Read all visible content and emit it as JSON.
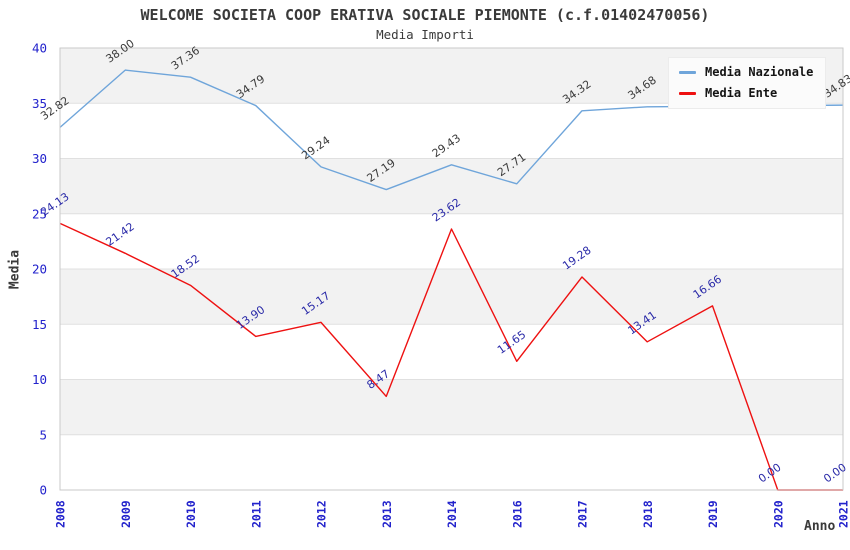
{
  "header": {
    "title": "WELCOME SOCIETA COOP ERATIVA SOCIALE PIEMONTE (c.f.01402470056)",
    "subtitle": "Media Importi"
  },
  "legend": {
    "items": [
      {
        "label": "Media Nazionale",
        "color": "#6fa5da"
      },
      {
        "label": "Media Ente",
        "color": "#ee1111"
      }
    ]
  },
  "axes": {
    "y_title": "Media",
    "x_title": "Anno"
  },
  "chart_data": {
    "type": "line",
    "title": "WELCOME SOCIETA COOP ERATIVA SOCIALE PIEMONTE (c.f.01402470056)",
    "subtitle": "Media Importi",
    "xlabel": "Anno",
    "ylabel": "Media",
    "categories": [
      "2008",
      "2009",
      "2010",
      "2011",
      "2012",
      "2013",
      "2014",
      "2016",
      "2017",
      "2018",
      "2019",
      "2020",
      "2021"
    ],
    "series": [
      {
        "name": "Media Nazionale",
        "color": "#6fa5da",
        "label_color": "#3a3a3a",
        "values": [
          32.82,
          38.0,
          37.36,
          34.79,
          29.24,
          27.19,
          29.43,
          27.71,
          34.32,
          34.68,
          34.72,
          34.78,
          34.83
        ],
        "labels": [
          "32.82",
          "38.00",
          "37.36",
          "34.79",
          "29.24",
          "27.19",
          "29.43",
          "27.71",
          "34.32",
          "34.68",
          null,
          null,
          "34.83"
        ]
      },
      {
        "name": "Media Ente",
        "color": "#ee1111",
        "label_color": "#2a2aa8",
        "values": [
          24.13,
          21.42,
          18.52,
          13.9,
          15.17,
          8.47,
          23.62,
          11.65,
          19.28,
          13.41,
          16.66,
          0.0,
          0.0
        ],
        "labels": [
          "24.13",
          "21.42",
          "18.52",
          "13.90",
          "15.17",
          "8.47",
          "23.62",
          "11.65",
          "19.28",
          "13.41",
          "16.66",
          "0.00",
          "0.00"
        ]
      }
    ],
    "ylim": [
      0,
      40
    ],
    "yticks": [
      0,
      5,
      10,
      15,
      20,
      25,
      30,
      35,
      40
    ],
    "grid": true,
    "legend_position": "top-right",
    "band_colors": [
      "#ffffff",
      "#f2f2f2"
    ],
    "tick_color": "#2323cc",
    "gridline_color": "#e0e0e0",
    "border_color": "#c9c9c9"
  }
}
